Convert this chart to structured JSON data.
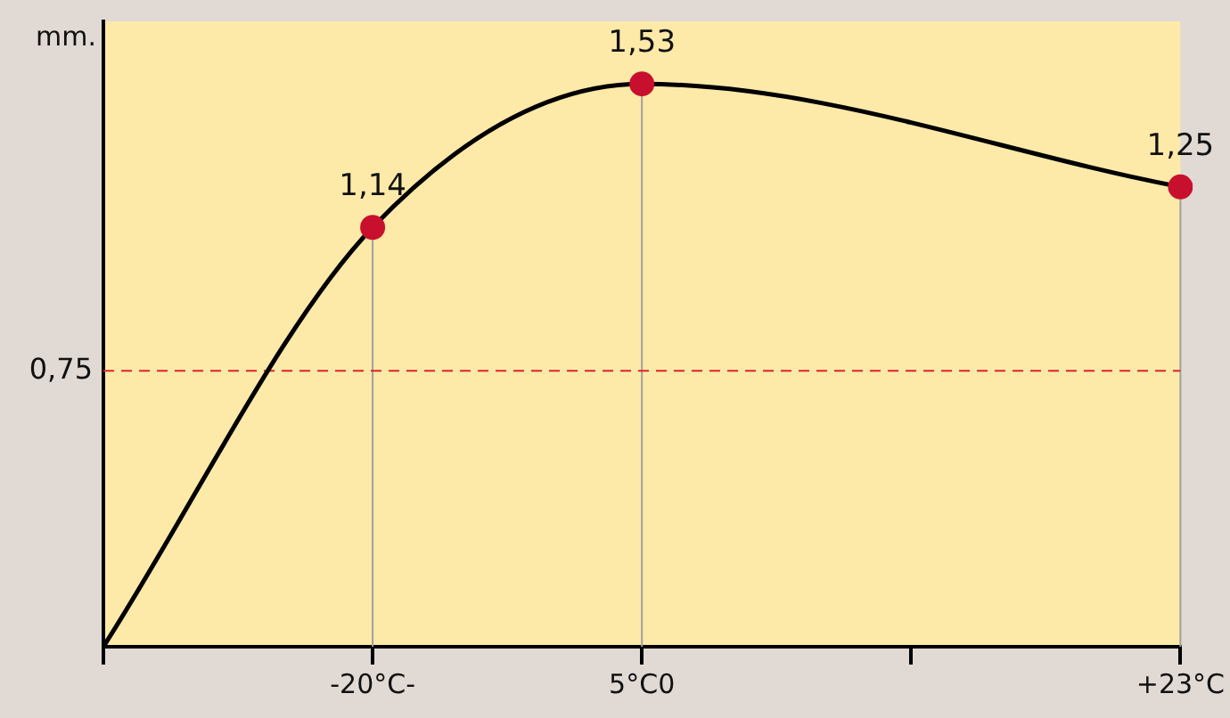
{
  "chart_data": {
    "type": "line",
    "ylabel": "mm.",
    "ylim": [
      0,
      1.7
    ],
    "categories": [
      null,
      "-20°C-",
      "5°C0",
      null,
      "+23°C"
    ],
    "values": [
      0,
      1.14,
      1.53,
      null,
      1.25
    ],
    "value_labels": [
      null,
      "1,14",
      "1,53",
      null,
      "1,25"
    ],
    "color": "#000000",
    "marker": "circle",
    "line_style": "solid",
    "grid": "x",
    "legend": false,
    "tick_labels": "x",
    "ref_lines": [
      {
        "axis": "y",
        "value": 0.75,
        "label": "0,75",
        "color": "#d9262b",
        "line_style": "dashed"
      }
    ]
  }
}
